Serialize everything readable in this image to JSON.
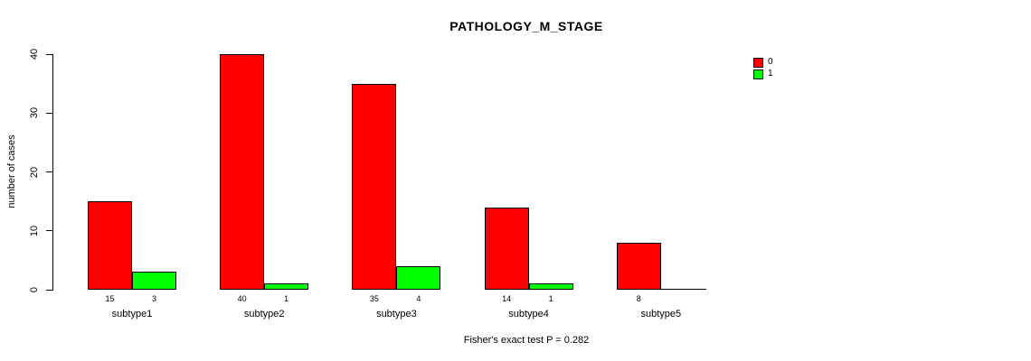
{
  "chart_data": {
    "type": "bar",
    "title": "PATHOLOGY_M_STAGE",
    "categories": [
      "subtype1",
      "subtype2",
      "subtype3",
      "subtype4",
      "subtype5"
    ],
    "series": [
      {
        "name": "0",
        "color": "#FF0000",
        "values": [
          15,
          40,
          35,
          14,
          8
        ]
      },
      {
        "name": "1",
        "color": "#00FF00",
        "values": [
          3,
          1,
          4,
          1,
          0
        ]
      }
    ],
    "xlabel": "",
    "ylabel": "number of cases",
    "ylim": [
      0,
      40
    ],
    "yticks": [
      0,
      10,
      20,
      30,
      40
    ],
    "grid": false,
    "legend_position": "top-right",
    "bar_value_labels": true,
    "annotation": "Fisher's exact test P = 0.282"
  }
}
